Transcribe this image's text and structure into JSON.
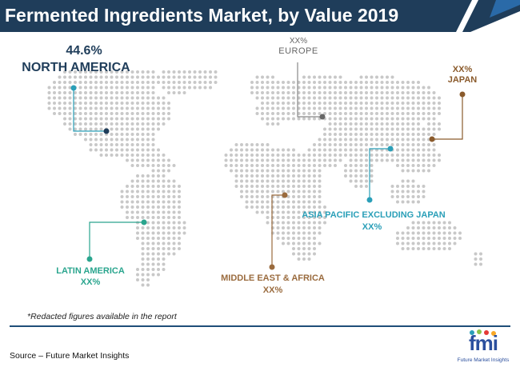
{
  "title": "Fermented Ingredients Market, by Value 2019",
  "regions": {
    "north_america": {
      "value": "44.6%",
      "name": "NORTH AMERICA"
    },
    "europe": {
      "value": "XX%",
      "name": "EUROPE"
    },
    "japan": {
      "value": "XX%",
      "name": "JAPAN"
    },
    "asia_pacific": {
      "name": "ASIA PACIFIC EXCLUDING JAPAN",
      "value": "XX%"
    },
    "latin_america": {
      "name": "LATIN AMERICA",
      "value": "XX%"
    },
    "mea": {
      "name": "MIDDLE EAST & AFRICA",
      "value": "XX%"
    }
  },
  "note": "*Redacted figures available in the report",
  "source": "Source – Future Market Insights",
  "logo": {
    "text": "fmi",
    "subtitle": "Future Market Insights"
  },
  "colors": {
    "header": "#1f3d5a",
    "north_america": "#1f3d5a",
    "europe": "#666666",
    "japan": "#8a5a2b",
    "asia_pacific": "#2a9fb8",
    "latin_america": "#2aa58e",
    "mea": "#9a6b3e",
    "dots": "#c8c8c8"
  }
}
